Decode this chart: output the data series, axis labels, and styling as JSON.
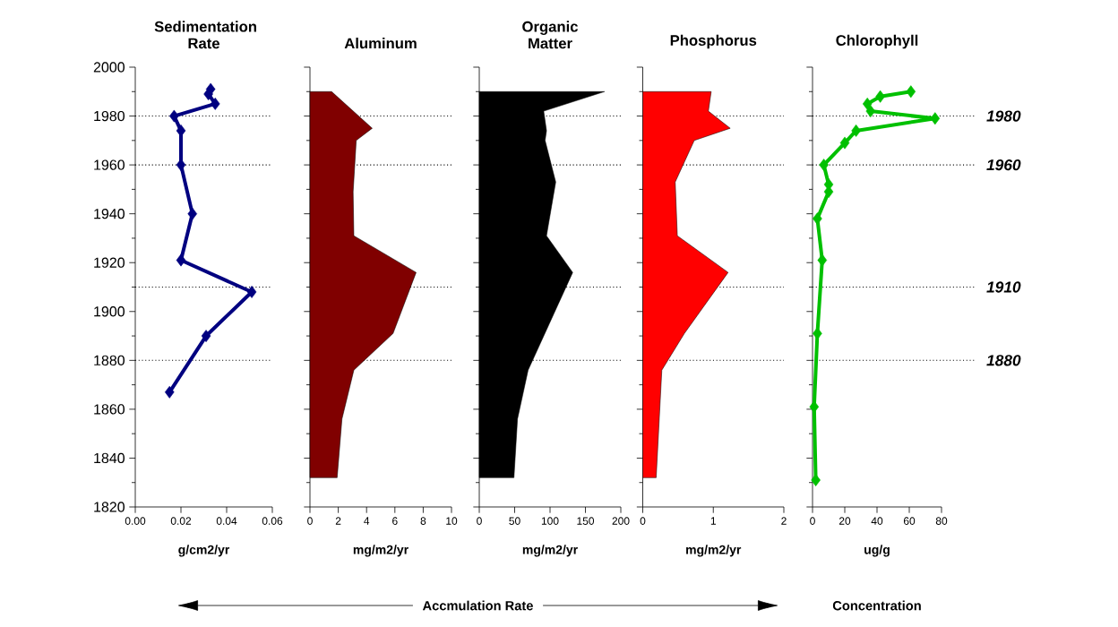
{
  "chart_data": [
    {
      "type": "line",
      "title": "Sedimentation Rate",
      "xlabel": "g/cm2/yr",
      "color": "#000080",
      "marker": "diamond",
      "x": [
        0.033,
        0.032,
        0.035,
        0.017,
        0.02,
        0.02,
        0.025,
        0.02,
        0.051,
        0.031,
        0.015
      ],
      "values": [
        1991,
        1989,
        1985,
        1980,
        1974,
        1960,
        1940,
        1921,
        1908,
        1890,
        1867
      ],
      "xlim": [
        0,
        0.06
      ],
      "xticks": [
        {
          "value": 0,
          "label": "0.00"
        },
        {
          "value": 0.02,
          "label": "0.02"
        },
        {
          "value": 0.04,
          "label": "0.04"
        },
        {
          "value": 0.06,
          "label": "0.06"
        }
      ],
      "ylim": [
        1820,
        2000
      ],
      "yticks": [
        1820,
        1840,
        1860,
        1880,
        1900,
        1920,
        1940,
        1960,
        1980,
        2000
      ],
      "ref_lines": [
        {
          "axis": "y",
          "value": 1980,
          "line_style": "dotted"
        },
        {
          "axis": "y",
          "value": 1960,
          "line_style": "dotted"
        },
        {
          "axis": "y",
          "value": 1910,
          "line_style": "dotted"
        },
        {
          "axis": "y",
          "value": 1880,
          "line_style": "dotted"
        }
      ],
      "annotations": [
        "Accmulation Rate"
      ]
    },
    {
      "type": "area",
      "orientation": "horizontal",
      "title": "Aluminum",
      "xlabel": "mg/m2/yr",
      "color": "#800000",
      "values": [
        1.53,
        4.4,
        3.27,
        3.05,
        3.1,
        7.5,
        5.87,
        3.1,
        2.26,
        1.92
      ],
      "x": [
        1990,
        1975,
        1970,
        1949,
        1931,
        1916,
        1891,
        1876,
        1856,
        1832
      ],
      "xlim": [
        0,
        10
      ],
      "xticks": [
        0,
        2,
        4,
        6,
        8,
        10
      ],
      "ylim": [
        1820,
        2000
      ],
      "yticks": [
        1820,
        1840,
        1860,
        1880,
        1900,
        1920,
        1940,
        1960,
        1980,
        2000
      ],
      "tick_labels": "x",
      "ref_lines": [
        {
          "axis": "y",
          "value": 1980,
          "line_style": "dotted"
        },
        {
          "axis": "y",
          "value": 1960,
          "line_style": "dotted"
        },
        {
          "axis": "y",
          "value": 1910,
          "line_style": "dotted"
        },
        {
          "axis": "y",
          "value": 1880,
          "line_style": "dotted"
        }
      ]
    },
    {
      "type": "area",
      "orientation": "horizontal",
      "title": "Organic Matter",
      "xlabel": "mg/m2/yr",
      "color": "#000000",
      "values": [
        177,
        91,
        95,
        93,
        108,
        95,
        132,
        69,
        54,
        49
      ],
      "x": [
        1990,
        1982,
        1974,
        1970,
        1953,
        1931,
        1916,
        1876,
        1856,
        1832
      ],
      "xlim": [
        0,
        200
      ],
      "xticks": [
        0,
        50,
        100,
        150,
        200
      ],
      "ylim": [
        1820,
        2000
      ],
      "yticks": [
        1820,
        1840,
        1860,
        1880,
        1900,
        1920,
        1940,
        1960,
        1980,
        2000
      ],
      "tick_labels": "x",
      "ref_lines": [
        {
          "axis": "y",
          "value": 1980,
          "line_style": "dotted"
        },
        {
          "axis": "y",
          "value": 1960,
          "line_style": "dotted"
        },
        {
          "axis": "y",
          "value": 1910,
          "line_style": "dotted"
        },
        {
          "axis": "y",
          "value": 1880,
          "line_style": "dotted"
        }
      ]
    },
    {
      "type": "area",
      "orientation": "horizontal",
      "title": "Phosphorus",
      "xlabel": "mg/m2/yr",
      "color": "#ff0000",
      "values": [
        0.97,
        0.93,
        1.24,
        0.73,
        0.46,
        0.49,
        1.21,
        0.59,
        0.27,
        0.19
      ],
      "x": [
        1990,
        1982,
        1975,
        1970,
        1953,
        1931,
        1916,
        1891,
        1876,
        1832
      ],
      "xlim": [
        0,
        2
      ],
      "xticks": [
        0,
        1,
        2
      ],
      "ylim": [
        1820,
        2000
      ],
      "yticks": [
        1820,
        1840,
        1860,
        1880,
        1900,
        1920,
        1940,
        1960,
        1980,
        2000
      ],
      "tick_labels": "x",
      "ref_lines": [
        {
          "axis": "y",
          "value": 1980,
          "line_style": "dotted"
        },
        {
          "axis": "y",
          "value": 1960,
          "line_style": "dotted"
        },
        {
          "axis": "y",
          "value": 1910,
          "line_style": "dotted"
        },
        {
          "axis": "y",
          "value": 1880,
          "line_style": "dotted"
        }
      ]
    },
    {
      "type": "line",
      "title": "Chlorophyll",
      "xlabel": "ug/g",
      "color": "#00c000",
      "marker": "diamond",
      "x": [
        61,
        42,
        34,
        36,
        76,
        27,
        20,
        7,
        10,
        10,
        3,
        6,
        3,
        1,
        2
      ],
      "values": [
        1990,
        1988,
        1985,
        1982,
        1979,
        1974,
        1969,
        1960,
        1952,
        1949,
        1938,
        1921,
        1891,
        1861,
        1831
      ],
      "xlim": [
        0,
        80
      ],
      "xticks": [
        0,
        20,
        40,
        60,
        80
      ],
      "ylim": [
        1820,
        2000
      ],
      "yticks": [
        1820,
        1840,
        1860,
        1880,
        1900,
        1920,
        1940,
        1960,
        1980,
        2000
      ],
      "tick_labels": "x",
      "ref_lines": [
        {
          "axis": "y",
          "value": 1980,
          "label": "1980",
          "line_style": "dotted"
        },
        {
          "axis": "y",
          "value": 1960,
          "label": "1960",
          "line_style": "dotted"
        },
        {
          "axis": "y",
          "value": 1910,
          "label": "1910",
          "line_style": "dotted"
        },
        {
          "axis": "y",
          "value": 1880,
          "label": "1880",
          "line_style": "dotted"
        }
      ],
      "annotations": [
        "Concentration"
      ]
    }
  ]
}
